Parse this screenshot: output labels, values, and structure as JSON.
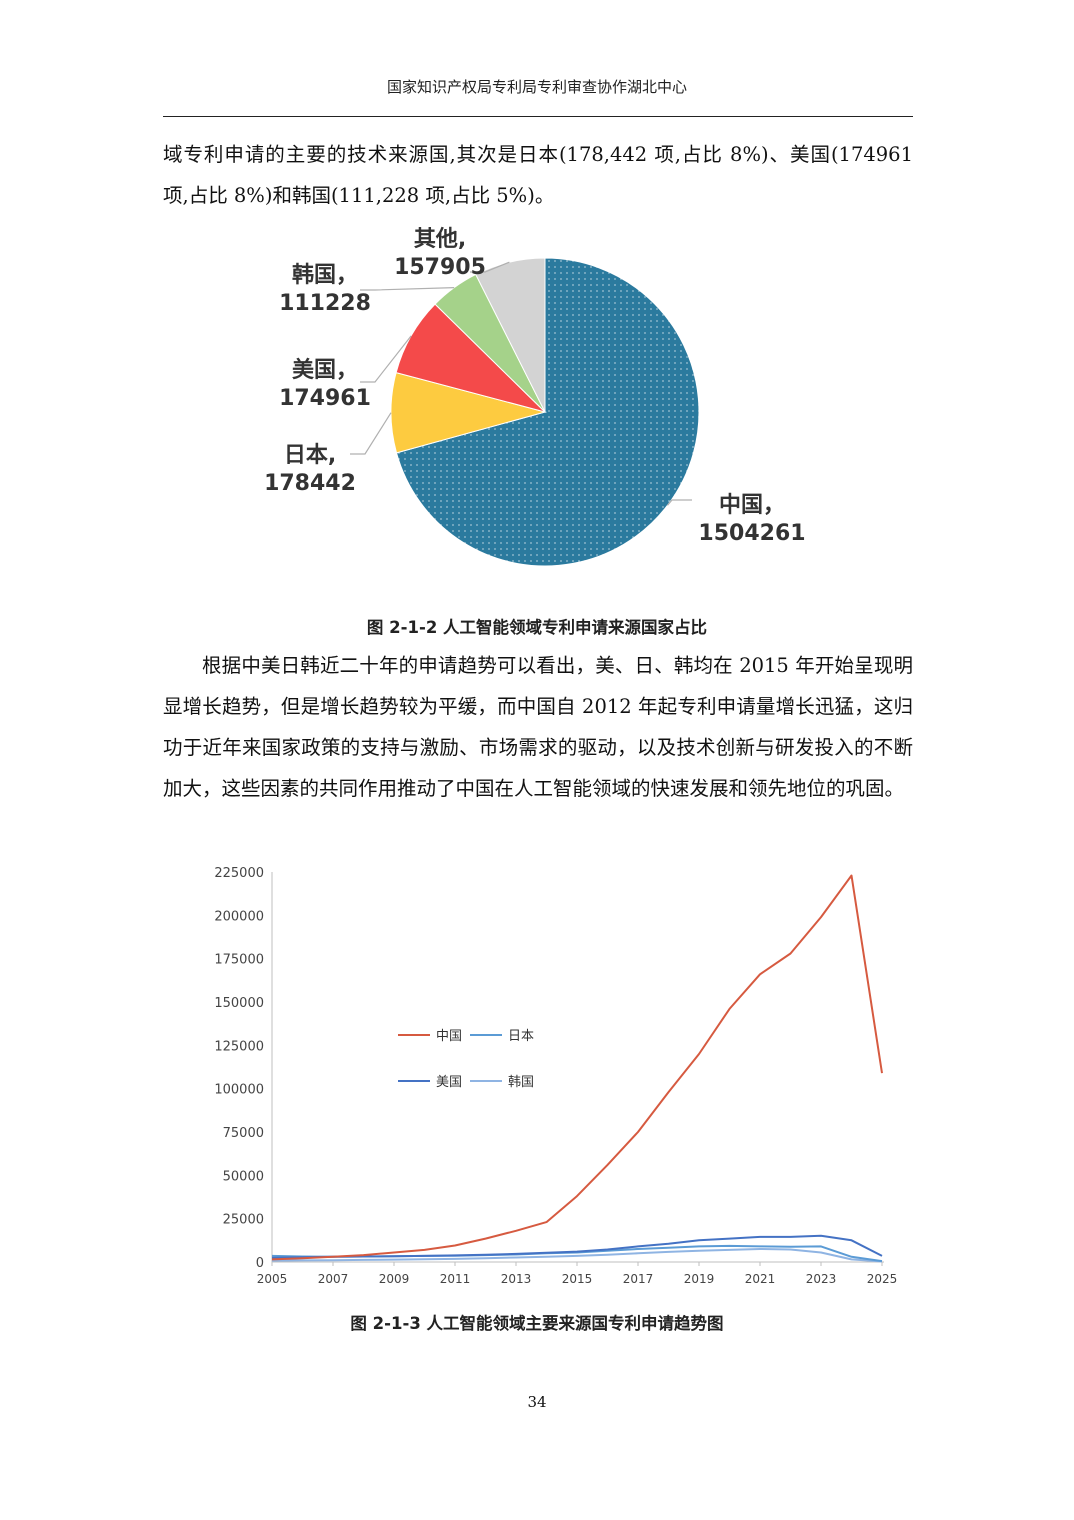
{
  "header": {
    "title": "国家知识产权局专利局专利审查协作湖北中心"
  },
  "paragraph1": "域专利申请的主要的技术来源国,其次是日本(178,442 项,占比 8%)、美国(174961 项,占比 8%)和韩国(111,228 项,占比 5%)。",
  "figure1": {
    "caption": "图 2-1-2 人工智能领域专利申请来源国家占比",
    "chart_data": {
      "type": "pie",
      "slices": [
        {
          "label": "中国",
          "value": 1504261,
          "color": "#2b7a9e",
          "label_text": "中国，",
          "value_text": "1504261"
        },
        {
          "label": "日本",
          "value": 178442,
          "color": "#fdcb40",
          "label_text": "日本,",
          "value_text": "178442"
        },
        {
          "label": "美国",
          "value": 174961,
          "color": "#f44a4a",
          "label_text": "美国，",
          "value_text": "174961"
        },
        {
          "label": "韩国",
          "value": 111228,
          "color": "#a5d28a",
          "label_text": "韩国，",
          "value_text": "111228"
        },
        {
          "label": "其他",
          "value": 157905,
          "color": "#d3d3d3",
          "label_text": "其他,",
          "value_text": "157905"
        }
      ]
    }
  },
  "paragraph2": "根据中美日韩近二十年的申请趋势可以看出，美、日、韩均在 2015 年开始呈现明显增长趋势，但是增长趋势较为平缓，而中国自 2012 年起专利申请量增长迅猛，这归功于近年来国家政策的支持与激励、市场需求的驱动，以及技术创新与研发投入的不断加大，这些因素的共同作用推动了中国在人工智能领域的快速发展和领先地位的巩固。",
  "figure2": {
    "caption": "图 2-1-3  人工智能领域主要来源国专利申请趋势图",
    "chart_data": {
      "type": "line",
      "x": [
        2005,
        2006,
        2007,
        2008,
        2009,
        2010,
        2011,
        2012,
        2013,
        2014,
        2015,
        2016,
        2017,
        2018,
        2019,
        2020,
        2021,
        2022,
        2023,
        2024,
        2025
      ],
      "xticks": [
        "2005",
        "2007",
        "2009",
        "2011",
        "2013",
        "2015",
        "2017",
        "2019",
        "2021",
        "2023",
        "2025"
      ],
      "ylim": [
        0,
        225000
      ],
      "yticks": [
        "0",
        "25000",
        "50000",
        "75000",
        "100000",
        "125000",
        "150000",
        "175000",
        "200000",
        "225000"
      ],
      "series": [
        {
          "name": "中国",
          "color": "#d65a40",
          "values": [
            1500,
            2200,
            3000,
            4000,
            5500,
            7000,
            9500,
            13500,
            18000,
            23000,
            38000,
            56000,
            75000,
            98000,
            120000,
            146000,
            166000,
            178000,
            199000,
            223000,
            109000
          ]
        },
        {
          "name": "日本",
          "color": "#5b9bd5",
          "values": [
            3500,
            3200,
            3000,
            3200,
            3300,
            3500,
            3600,
            4000,
            4300,
            5000,
            5500,
            6500,
            7500,
            8200,
            9000,
            9300,
            9000,
            8800,
            9000,
            3000,
            500
          ]
        },
        {
          "name": "美国",
          "color": "#4472c4",
          "values": [
            2500,
            2700,
            3000,
            3200,
            3300,
            3500,
            3800,
            4200,
            4700,
            5300,
            6000,
            7200,
            9000,
            10500,
            12500,
            13500,
            14500,
            14500,
            15200,
            12500,
            3500
          ]
        },
        {
          "name": "韩国",
          "color": "#8fb4e3",
          "values": [
            800,
            900,
            1000,
            1200,
            1400,
            1600,
            1800,
            2200,
            2600,
            3000,
            3500,
            4200,
            5000,
            5800,
            6500,
            7000,
            7500,
            7200,
            5500,
            1500,
            300
          ]
        }
      ],
      "legend": "center-left"
    }
  },
  "page_number": "34"
}
